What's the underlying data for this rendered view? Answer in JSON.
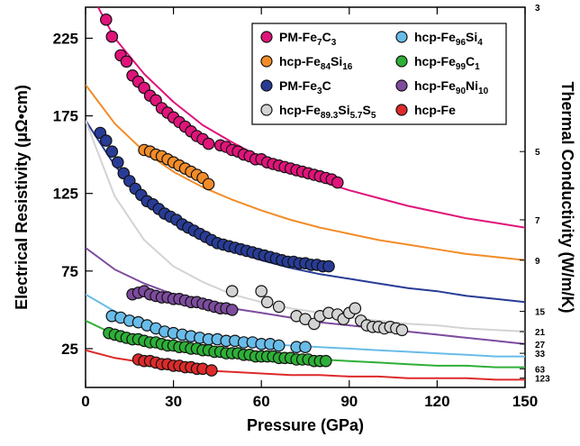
{
  "chart_data": {
    "type": "scatter",
    "xlabel": "Pressure (GPa)",
    "ylabel": "Electrical Resistivity (μΩ•cm)",
    "y2label": "Thermal Conductivity (W/m/K)",
    "xlim": [
      0,
      150
    ],
    "ylim": [
      0,
      245
    ],
    "x_ticks": [
      "0",
      "30",
      "60",
      "90",
      "120",
      "150"
    ],
    "y_ticks": [
      "25",
      "75",
      "125",
      "175",
      "225"
    ],
    "y2_ticks": [
      {
        "label": "3",
        "resistivity": 245
      },
      {
        "label": "5",
        "resistivity": 152
      },
      {
        "label": "7",
        "resistivity": 108
      },
      {
        "label": "9",
        "resistivity": 82
      },
      {
        "label": "15",
        "resistivity": 49
      },
      {
        "label": "21",
        "resistivity": 36
      },
      {
        "label": "27",
        "resistivity": 28
      },
      {
        "label": "33",
        "resistivity": 22
      },
      {
        "label": "63",
        "resistivity": 12
      },
      {
        "label": "123",
        "resistivity": 6
      }
    ],
    "legend": {
      "placement": "top-right",
      "columns": 2
    },
    "series": [
      {
        "name": "PM-Fe7C3",
        "label_main": "PM-Fe",
        "sub1": "7",
        "mid": "C",
        "sub2": "3",
        "mid2": "",
        "sub3": "",
        "color": "#e0147a",
        "x": [
          7,
          9,
          12,
          14,
          16,
          18,
          20,
          22,
          24,
          26,
          28,
          30,
          32,
          34,
          36,
          38,
          40,
          42,
          46,
          48,
          50,
          52,
          54,
          56,
          58,
          60,
          62,
          64,
          66,
          68,
          70,
          72,
          74,
          76,
          78,
          80,
          82,
          84,
          86
        ],
        "y": [
          237,
          226,
          214,
          210,
          201,
          197,
          193,
          188,
          185,
          180,
          177,
          174,
          171,
          168,
          165,
          162,
          160,
          157,
          156,
          155,
          153,
          152,
          150,
          149,
          147,
          147,
          145,
          144,
          143,
          142,
          141,
          140,
          139,
          138,
          137,
          136,
          135,
          134,
          132
        ],
        "curve_x": [
          0,
          10,
          20,
          30,
          40,
          50,
          60,
          70,
          80,
          90,
          100,
          110,
          120,
          130,
          140,
          150
        ],
        "curve_y": [
          260,
          225,
          202,
          184,
          169,
          158,
          148,
          140,
          133,
          127,
          122,
          117,
          113,
          109,
          106,
          103
        ]
      },
      {
        "name": "hcp-Fe84Si16",
        "label_main": "hcp-Fe",
        "sub1": "84",
        "mid": "Si",
        "sub2": "16",
        "mid2": "",
        "sub3": "",
        "color": "#f28c28",
        "x": [
          20,
          22,
          24,
          26,
          28,
          30,
          32,
          34,
          36,
          38,
          40,
          42
        ],
        "y": [
          153,
          152,
          150,
          149,
          147,
          145,
          143,
          141,
          139,
          137,
          135,
          131
        ],
        "curve_x": [
          0,
          10,
          20,
          30,
          40,
          50,
          60,
          70,
          80,
          90,
          100,
          110,
          120,
          130,
          140,
          150
        ],
        "curve_y": [
          195,
          170,
          152,
          139,
          129,
          121,
          114,
          108,
          103,
          99,
          95,
          92,
          89,
          86,
          84,
          82
        ]
      },
      {
        "name": "PM-Fe3C",
        "label_main": "PM-Fe",
        "sub1": "3",
        "mid": "C",
        "sub2": "",
        "mid2": "",
        "sub3": "",
        "color": "#283c96",
        "x": [
          5,
          7,
          9,
          11,
          13,
          15,
          17,
          19,
          21,
          23,
          25,
          27,
          29,
          31,
          33,
          35,
          37,
          39,
          41,
          43,
          45,
          47,
          49,
          51,
          53,
          55,
          57,
          59,
          61,
          63,
          65,
          67,
          69,
          71,
          73,
          75,
          77,
          79,
          81,
          83
        ],
        "y": [
          164,
          159,
          152,
          145,
          138,
          133,
          128,
          124,
          120,
          118,
          115,
          112,
          110,
          108,
          105,
          103,
          101,
          99,
          97,
          95,
          93,
          92,
          91,
          90,
          89,
          88,
          87,
          86,
          85,
          84,
          83,
          82,
          81,
          81,
          80,
          80,
          79,
          79,
          78,
          78
        ],
        "curve_x": [
          0,
          10,
          20,
          30,
          40,
          50,
          60,
          70,
          80,
          90,
          100,
          110,
          120,
          130,
          140,
          150
        ],
        "curve_y": [
          172,
          143,
          121,
          106,
          96,
          88,
          82,
          77,
          73,
          70,
          67,
          64,
          62,
          59,
          57,
          55
        ]
      },
      {
        "name": "hcp-Fe89.3Si5.7S5",
        "label_main": "hcp-Fe",
        "sub1": "89.3",
        "mid": "Si",
        "sub2": "5.7",
        "mid2": "S",
        "sub3": "5",
        "color": "#d3d3d3",
        "x": [
          50,
          60,
          62,
          66,
          72,
          75,
          78,
          80,
          83,
          86,
          88,
          90,
          92,
          94,
          96,
          98,
          100,
          102,
          104,
          106,
          108
        ],
        "y": [
          62,
          62,
          55,
          52,
          46,
          44,
          41,
          46,
          48,
          47,
          44,
          48,
          51,
          43,
          40,
          39,
          39,
          38,
          39,
          38,
          37
        ],
        "curve_x": [
          0,
          10,
          20,
          30,
          40,
          50,
          60,
          70,
          80,
          90,
          100,
          110,
          120,
          130,
          140,
          150
        ],
        "curve_y": [
          172,
          123,
          95,
          78,
          68,
          60,
          55,
          51,
          48,
          45,
          43,
          41,
          40,
          38,
          37,
          36
        ]
      },
      {
        "name": "hcp-Fe96Si4",
        "label_main": "hcp-Fe",
        "sub1": "96",
        "mid": "Si",
        "sub2": "4",
        "mid2": "",
        "sub3": "",
        "color": "#69bce8",
        "x": [
          9,
          12,
          15,
          18,
          21,
          24,
          27,
          30,
          33,
          36,
          39,
          42,
          45,
          48,
          51,
          54,
          57,
          60,
          63,
          66,
          72,
          75
        ],
        "y": [
          46,
          45,
          43,
          42,
          40,
          38,
          36,
          35,
          34,
          33,
          32,
          31,
          31,
          30,
          30,
          29,
          29,
          28,
          28,
          27,
          26,
          26
        ],
        "curve_x": [
          0,
          10,
          20,
          30,
          40,
          50,
          60,
          70,
          80,
          90,
          100,
          110,
          120,
          130,
          140,
          150
        ],
        "curve_y": [
          60,
          49,
          42,
          37,
          33,
          30,
          28,
          27,
          26,
          25,
          24,
          23,
          22,
          21,
          20,
          20
        ]
      },
      {
        "name": "hcp-Fe99C1",
        "label_main": "hcp-Fe",
        "sub1": "99",
        "mid": "C",
        "sub2": "1",
        "mid2": "",
        "sub3": "",
        "color": "#2eaf37",
        "x": [
          8,
          10,
          12,
          14,
          16,
          18,
          20,
          22,
          24,
          26,
          28,
          30,
          32,
          34,
          36,
          38,
          40,
          42,
          44,
          46,
          48,
          50,
          52,
          54,
          56,
          58,
          60,
          62,
          64,
          66,
          68,
          70,
          72,
          74,
          76,
          78,
          80,
          82
        ],
        "y": [
          35,
          34,
          33,
          32,
          31,
          31,
          30,
          29,
          29,
          28,
          27,
          27,
          26,
          26,
          25,
          25,
          24,
          24,
          23,
          23,
          22,
          22,
          22,
          21,
          21,
          20,
          20,
          20,
          20,
          19,
          19,
          19,
          18,
          18,
          18,
          17,
          17,
          17
        ],
        "curve_x": [
          0,
          10,
          20,
          30,
          40,
          50,
          60,
          70,
          80,
          90,
          100,
          110,
          120,
          130,
          140,
          150
        ],
        "curve_y": [
          43,
          34,
          29,
          26,
          24,
          22,
          20,
          19,
          18,
          17,
          16,
          15,
          14,
          14,
          13,
          13
        ]
      },
      {
        "name": "hcp-Fe90Ni10",
        "label_main": "hcp-Fe",
        "sub1": "90",
        "mid": "Ni",
        "sub2": "10",
        "mid2": "",
        "sub3": "",
        "color": "#7d4c9e",
        "x": [
          16,
          18,
          20,
          22,
          24,
          26,
          28,
          30,
          32,
          34,
          36,
          38,
          40,
          42,
          44,
          46,
          48,
          50
        ],
        "y": [
          60,
          61,
          62,
          60,
          59,
          58,
          58,
          57,
          57,
          56,
          55,
          55,
          54,
          53,
          52,
          51,
          51,
          50
        ],
        "curve_x": [
          0,
          10,
          20,
          30,
          40,
          50,
          60,
          70,
          80,
          90,
          100,
          110,
          120,
          130,
          140,
          150
        ],
        "curve_y": [
          90,
          76,
          67,
          60,
          55,
          51,
          48,
          45,
          42,
          40,
          38,
          36,
          34,
          32,
          30,
          28
        ]
      },
      {
        "name": "hcp-Fe",
        "label_main": "hcp-Fe",
        "sub1": "",
        "mid": "",
        "sub2": "",
        "mid2": "",
        "sub3": "",
        "color": "#dd2a2a",
        "x": [
          18,
          20,
          22,
          24,
          26,
          28,
          30,
          32,
          34,
          36,
          38,
          40,
          43
        ],
        "y": [
          18,
          17,
          17,
          16,
          15,
          15,
          14,
          14,
          13,
          13,
          12,
          12,
          11
        ],
        "curve_x": [
          0,
          10,
          20,
          30,
          40,
          50,
          60,
          70,
          80,
          90,
          100,
          110,
          120,
          130,
          140,
          150
        ],
        "curve_y": [
          24,
          19,
          16,
          13,
          11,
          10,
          9,
          8,
          8,
          7,
          7,
          6,
          6,
          6,
          5,
          5
        ]
      }
    ]
  }
}
